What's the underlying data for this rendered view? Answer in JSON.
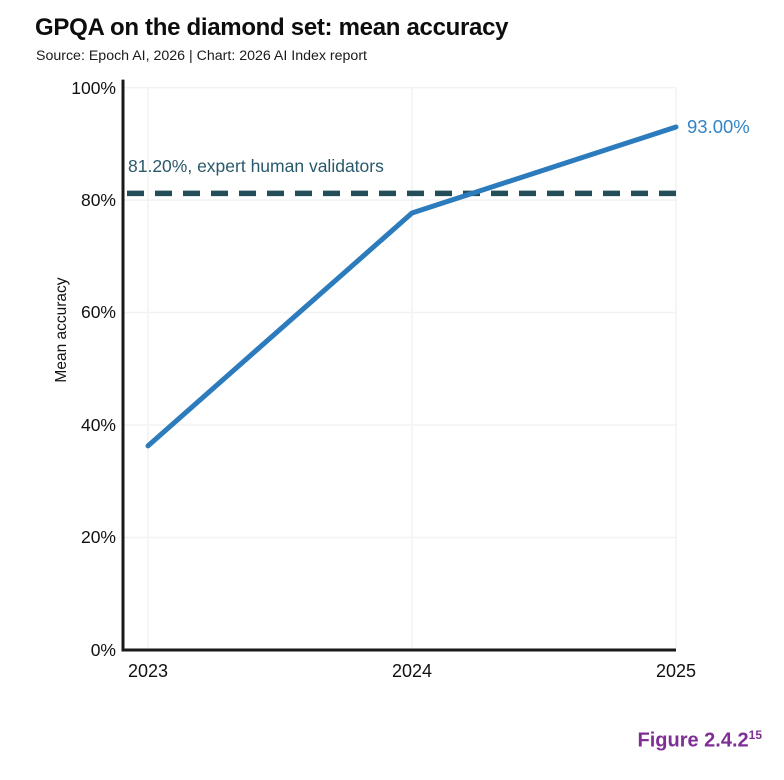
{
  "header": {
    "title": "GPQA on the diamond set: mean accuracy",
    "subtitle": "Source: Epoch AI, 2026 | Chart: 2026 AI Index report"
  },
  "figure_caption": {
    "label": "Figure 2.4.2",
    "superscript": "15"
  },
  "colors": {
    "accent_line": "#2b7bbd",
    "end_label": "#3384c6",
    "threshold_line": "#234e57",
    "threshold_label": "#29596a",
    "caption_purple": "#7f2e96",
    "axis": "#1a1a1a",
    "grid": "#f2f2f2"
  },
  "chart_data": {
    "type": "line",
    "title": "GPQA on the diamond set: mean accuracy",
    "subtitle": "Source: Epoch AI, 2026 | Chart: 2026 AI Index report",
    "categories": [
      "2023",
      "2024",
      "2025"
    ],
    "series": [
      {
        "name": "Mean accuracy",
        "values": [
          36.3,
          77.7,
          93.0
        ],
        "color": "#2b7bbd"
      }
    ],
    "end_label": "93.00%",
    "threshold": {
      "value": 81.2,
      "label": "81.20%, expert human validators",
      "color": "#234e57",
      "style": "dashed"
    },
    "xlabel": "",
    "ylabel": "Mean accuracy",
    "ylim": [
      0,
      100
    ],
    "yticks": [
      "0%",
      "20%",
      "40%",
      "60%",
      "80%",
      "100%"
    ],
    "xticks": [
      "2023",
      "2024",
      "2025"
    ],
    "grid": true,
    "legend": "none"
  }
}
